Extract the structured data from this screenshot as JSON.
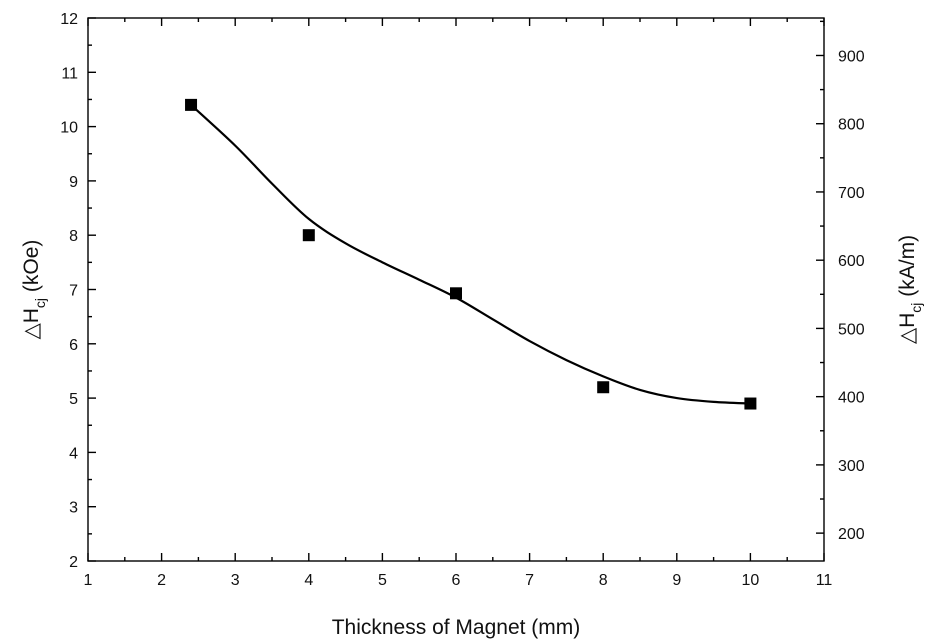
{
  "chart_data": {
    "type": "scatter",
    "xlabel": "Thickness of Magnet (mm)",
    "ylabel_left": {
      "main": "△H",
      "sub": "cj",
      "unit": " (kOe)"
    },
    "ylabel_right": {
      "main": "△H",
      "sub": "cj",
      "unit": " (kA/m)"
    },
    "xlim": [
      1,
      11
    ],
    "ylim_left": [
      2,
      12
    ],
    "ylim_right": [
      159.15,
      954.93
    ],
    "x_ticks": [
      1,
      2,
      3,
      4,
      5,
      6,
      7,
      8,
      9,
      10,
      11
    ],
    "y_left_ticks": [
      2,
      3,
      4,
      5,
      6,
      7,
      8,
      9,
      10,
      11,
      12
    ],
    "y_right_ticks": [
      200,
      300,
      400,
      500,
      600,
      700,
      800,
      900
    ],
    "grid": false,
    "series": [
      {
        "marker": "square",
        "color": "#000000",
        "x": [
          2.4,
          4,
          6,
          8,
          10
        ],
        "y": [
          10.4,
          8.0,
          6.93,
          5.2,
          4.9
        ]
      }
    ],
    "fit_curve": {
      "color": "#000000",
      "x": [
        2.4,
        3.0,
        3.5,
        4.0,
        4.5,
        5.0,
        5.5,
        6.0,
        6.5,
        7.0,
        7.5,
        8.0,
        8.5,
        9.0,
        9.5,
        10.0
      ],
      "y": [
        10.4,
        9.65,
        8.95,
        8.3,
        7.85,
        7.5,
        7.18,
        6.85,
        6.45,
        6.05,
        5.7,
        5.4,
        5.15,
        5.0,
        4.93,
        4.9
      ]
    }
  }
}
